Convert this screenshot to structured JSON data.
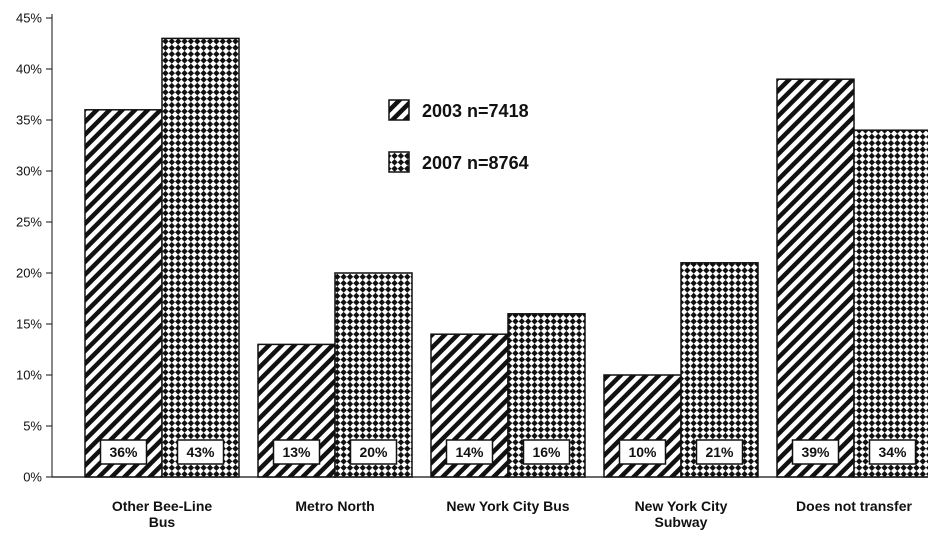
{
  "chart_data": {
    "type": "bar",
    "categories": [
      "Other Bee-Line Bus",
      "Metro North",
      "New York City Bus",
      "New York City Subway",
      "Does not transfer"
    ],
    "category_lines": [
      [
        "Other Bee-Line",
        "Bus"
      ],
      [
        "Metro North"
      ],
      [
        "New York City Bus"
      ],
      [
        "New York City",
        "Subway"
      ],
      [
        "Does not transfer"
      ]
    ],
    "series": [
      {
        "name": "2003 n=7418",
        "values": [
          36,
          13,
          14,
          10,
          39
        ],
        "labels": [
          "36%",
          "13%",
          "14%",
          "10%",
          "39%"
        ],
        "pattern": "diagonal-stripes"
      },
      {
        "name": "2007 n=8764",
        "values": [
          43,
          20,
          16,
          21,
          34
        ],
        "labels": [
          "43%",
          "20%",
          "16%",
          "21%",
          "34%"
        ],
        "pattern": "checkerboard-diamond"
      }
    ],
    "ylim": [
      0,
      45
    ],
    "yticks": [
      "0%",
      "5%",
      "10%",
      "15%",
      "20%",
      "25%",
      "30%",
      "35%",
      "40%",
      "45%"
    ],
    "title": "",
    "xlabel": "",
    "ylabel": "",
    "legend_position": "top-center",
    "grid": false,
    "colors": {
      "ink": "#111111",
      "background": "#ffffff"
    }
  }
}
